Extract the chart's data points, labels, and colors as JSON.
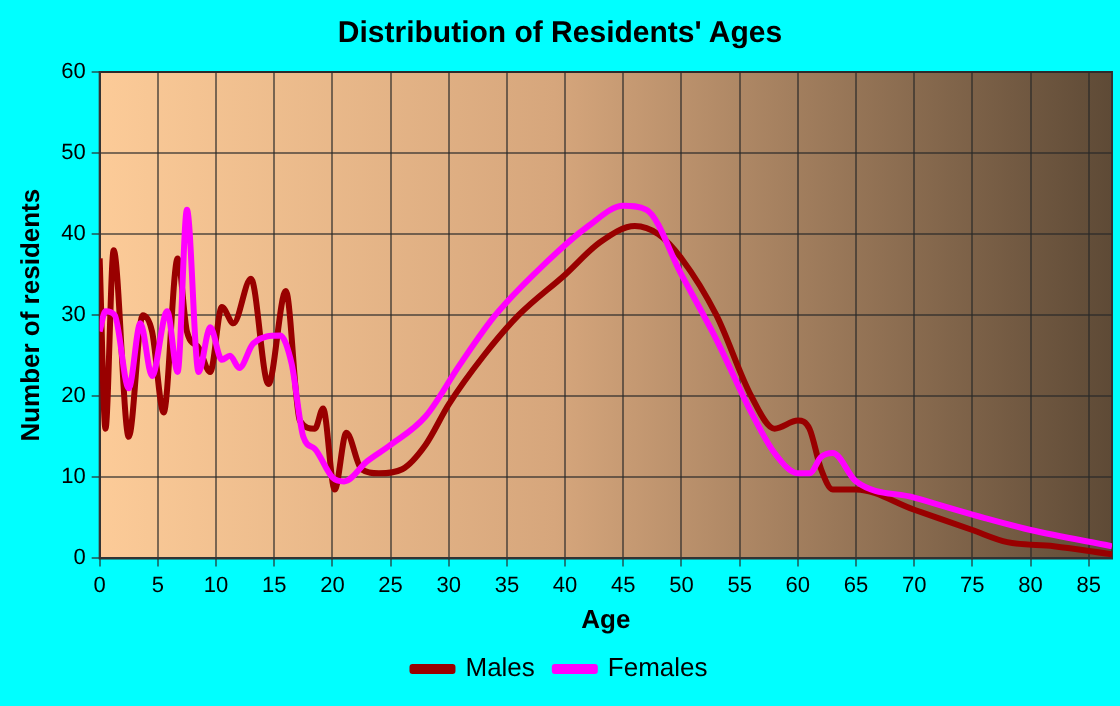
{
  "chart_data": {
    "type": "line",
    "title": "Distribution of Residents' Ages",
    "xlabel": "Age",
    "ylabel": "Number of residents",
    "xlim": [
      0,
      87
    ],
    "xticks": [
      0,
      5,
      10,
      15,
      20,
      25,
      30,
      35,
      40,
      45,
      50,
      55,
      60,
      65,
      70,
      75,
      80,
      85
    ],
    "ylim": [
      0,
      60
    ],
    "yticks": [
      0,
      10,
      20,
      30,
      40,
      50,
      60
    ],
    "grid": true,
    "legend": "bottom",
    "line_style": "solid",
    "marker": "none",
    "series": [
      {
        "name": "Males",
        "color": "#990000",
        "x": [
          0,
          0.5,
          1.2,
          2.5,
          3.7,
          4.5,
          5.5,
          6.7,
          7.5,
          8.5,
          9.5,
          10.5,
          11.5,
          13,
          14.5,
          16,
          17.2,
          18.5,
          19.2,
          20.2,
          21.2,
          22.5,
          24,
          26,
          28,
          30,
          33,
          36,
          40,
          43,
          46,
          48,
          50,
          53,
          56,
          58,
          60,
          61,
          62,
          63,
          65,
          70,
          75,
          78,
          82,
          87
        ],
        "values": [
          37,
          16,
          38,
          15,
          30,
          28,
          18,
          37,
          28,
          26,
          23,
          31,
          29,
          34.5,
          21.5,
          33,
          17,
          16,
          18.5,
          8.5,
          15.5,
          11,
          10.5,
          11,
          14,
          19,
          25,
          30,
          35,
          39,
          41,
          40,
          37,
          30,
          20,
          16,
          17,
          16,
          11,
          8.5,
          8.5,
          6,
          3.5,
          2,
          1.5,
          0.5
        ]
      },
      {
        "name": "Females",
        "color": "#ff00ff",
        "x": [
          0,
          0.5,
          1.3,
          2.5,
          3.5,
          4.5,
          5.8,
          6.7,
          7.5,
          8.5,
          9.5,
          10.5,
          11.2,
          12,
          13.2,
          15.5,
          16.5,
          17.5,
          18.5,
          20,
          21,
          23,
          25,
          28,
          31,
          34,
          38,
          42,
          45,
          47,
          50,
          53,
          56,
          58,
          60,
          61,
          62,
          63,
          65,
          70,
          76,
          80,
          87
        ],
        "values": [
          28,
          30.5,
          30,
          21,
          29,
          22.5,
          30.5,
          23,
          43,
          23,
          28.5,
          24.5,
          25,
          23.5,
          26.5,
          27.5,
          24,
          15,
          13.5,
          10,
          9.5,
          12,
          14,
          17.5,
          24,
          30,
          36,
          41,
          43.5,
          43,
          35,
          27,
          18,
          13,
          10.5,
          10.5,
          12.5,
          13,
          9.5,
          7.5,
          5,
          3.5,
          1.5
        ]
      }
    ]
  }
}
